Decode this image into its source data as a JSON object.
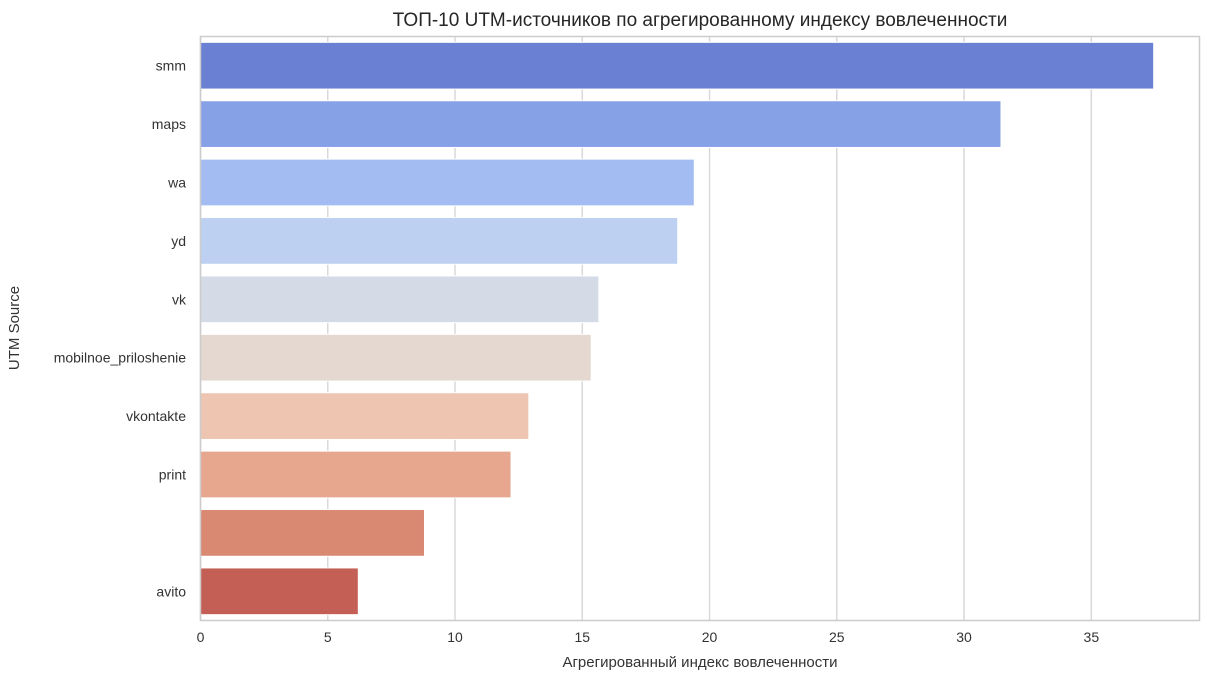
{
  "chart_data": {
    "type": "bar",
    "orientation": "horizontal",
    "title": "ТОП-10 UTM-источников по агрегированному индексу вовлеченности",
    "xlabel": "Агрегированный индекс вовлеченности",
    "ylabel": "UTM Source",
    "categories": [
      "smm",
      "maps",
      "wa",
      "yd",
      "vk",
      "mobilnoe_priloshenie",
      "vkontakte",
      "print",
      "",
      "avito"
    ],
    "values": [
      37.45,
      31.45,
      19.4,
      18.75,
      15.65,
      15.35,
      12.9,
      12.2,
      8.8,
      6.2
    ],
    "colors": [
      "#6a80d3",
      "#87a1e6",
      "#a3bcf2",
      "#bdd0f1",
      "#d5dbe6",
      "#e5d8d0",
      "#edc5b0",
      "#e6a78e",
      "#d98871",
      "#c35f54"
    ],
    "xlim": [
      0,
      39.25
    ],
    "xticks": [
      0,
      5,
      10,
      15,
      20,
      25,
      30,
      35
    ],
    "grid": "vertical",
    "legend": "none"
  }
}
